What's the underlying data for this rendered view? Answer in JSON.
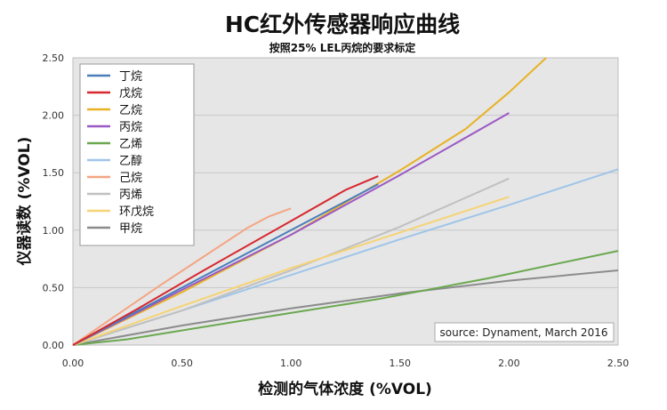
{
  "chart_data": {
    "type": "line",
    "title": "HC红外传感器响应曲线",
    "subtitle": "按照25% LEL丙烷的要求标定",
    "xlabel": "检测的气体浓度 (%VOL)",
    "ylabel": "仪器读数 (%VOL)",
    "xlim": [
      0,
      2.5
    ],
    "ylim": [
      0,
      2.5
    ],
    "x_ticks": [
      "0.00",
      "0.50",
      "1.00",
      "1.50",
      "2.00",
      "2.50"
    ],
    "y_ticks": [
      "0.00",
      "0.50",
      "1.00",
      "1.50",
      "2.00",
      "2.50"
    ],
    "grid": "horizontal",
    "legend_position": "top-left",
    "annotation": "source: Dynament, March 2016",
    "series": [
      {
        "name": "丁烷",
        "color": "#4a7ebb",
        "x": [
          0,
          0.3,
          0.6,
          1.0,
          1.4
        ],
        "y": [
          0,
          0.3,
          0.6,
          1.0,
          1.4
        ]
      },
      {
        "name": "戊烷",
        "color": "#d7282f",
        "x": [
          0,
          0.3,
          0.6,
          1.0,
          1.25,
          1.4
        ],
        "y": [
          0,
          0.32,
          0.65,
          1.08,
          1.35,
          1.47
        ]
      },
      {
        "name": "乙烷",
        "color": "#e8b224",
        "x": [
          0,
          0.5,
          1.0,
          1.5,
          1.8,
          2.0,
          2.17
        ],
        "y": [
          0,
          0.46,
          0.96,
          1.52,
          1.88,
          2.2,
          2.5
        ]
      },
      {
        "name": "丙烷",
        "color": "#9b59c6",
        "x": [
          0,
          0.5,
          1.0,
          1.5,
          2.0
        ],
        "y": [
          0,
          0.48,
          0.96,
          1.48,
          2.02
        ]
      },
      {
        "name": "乙烯",
        "color": "#6aa84f",
        "x": [
          0,
          0.25,
          0.8,
          1.4,
          1.9,
          2.5
        ],
        "y": [
          0,
          0.05,
          0.22,
          0.4,
          0.58,
          0.82
        ]
      },
      {
        "name": "乙醇",
        "color": "#9fc5e8",
        "x": [
          0,
          0.5,
          1.0,
          1.5,
          2.0,
          2.5
        ],
        "y": [
          0,
          0.3,
          0.61,
          0.92,
          1.22,
          1.53
        ]
      },
      {
        "name": "己烷",
        "color": "#f4a582",
        "x": [
          0,
          0.2,
          0.4,
          0.6,
          0.8,
          0.9,
          1.0
        ],
        "y": [
          0,
          0.26,
          0.52,
          0.77,
          1.02,
          1.12,
          1.19
        ]
      },
      {
        "name": "丙烯",
        "color": "#c0c0c0",
        "x": [
          0,
          0.5,
          1.0,
          1.5,
          2.0
        ],
        "y": [
          0,
          0.3,
          0.65,
          1.03,
          1.45
        ]
      },
      {
        "name": "环戊烷",
        "color": "#f6d374",
        "x": [
          0,
          0.5,
          1.0,
          1.5,
          2.0
        ],
        "y": [
          0,
          0.34,
          0.67,
          0.98,
          1.29
        ]
      },
      {
        "name": "甲烷",
        "color": "#8c8c8c",
        "x": [
          0,
          0.5,
          1.0,
          1.5,
          2.0,
          2.5
        ],
        "y": [
          0,
          0.17,
          0.32,
          0.45,
          0.56,
          0.65
        ]
      }
    ]
  }
}
